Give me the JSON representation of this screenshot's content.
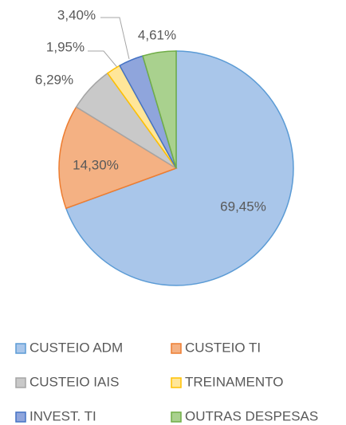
{
  "chart_data": {
    "type": "pie",
    "categories": [
      "CUSTEIO ADM",
      "CUSTEIO TI",
      "CUSTEIO IAIS",
      "TREINAMENTO",
      "INVEST. TI",
      "OUTRAS DESPESAS"
    ],
    "values": [
      69.45,
      14.3,
      6.29,
      1.95,
      3.4,
      4.61
    ],
    "value_labels": [
      "69,45%",
      "14,30%",
      "6,29%",
      "1,95%",
      "3,40%",
      "4,61%"
    ],
    "colors": [
      "#a9c6ea",
      "#f4b183",
      "#c9c9c9",
      "#ffe699",
      "#8fa5dc",
      "#a9d18e"
    ],
    "edge_colors": [
      "#5b9bd5",
      "#ed7d31",
      "#a5a5a5",
      "#ffc000",
      "#4472c4",
      "#70ad47"
    ],
    "legend": "bottom"
  }
}
